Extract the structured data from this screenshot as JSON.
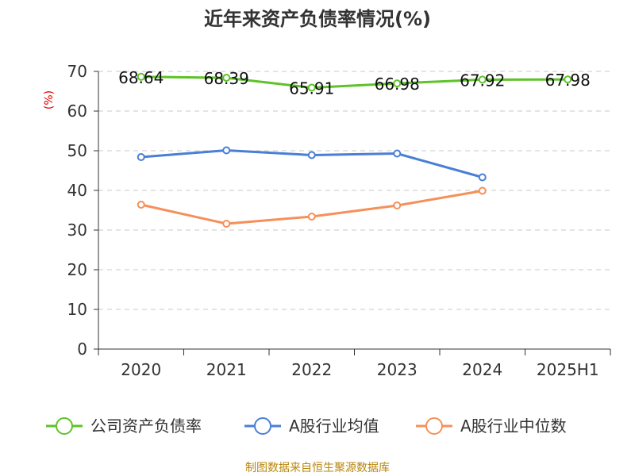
{
  "chart_data": {
    "type": "line",
    "title": "近年来资产负债率情况(%)",
    "ylabel": "(%)",
    "xlabel": "",
    "categories": [
      "2020",
      "2021",
      "2022",
      "2023",
      "2024",
      "2025H1"
    ],
    "ylim": [
      0,
      70
    ],
    "yticks": [
      0,
      10,
      20,
      30,
      40,
      50,
      60,
      70
    ],
    "grid": true,
    "legend_position": "bottom",
    "series": [
      {
        "name": "公司资产负债率",
        "color": "#5fc22a",
        "values": [
          68.64,
          68.39,
          65.91,
          66.98,
          67.92,
          67.98
        ],
        "labels": [
          "68.64",
          "68.39",
          "65.91",
          "66.98",
          "67.92",
          "67.98"
        ]
      },
      {
        "name": "A股行业均值",
        "color": "#4a7fd6",
        "values": [
          48.4,
          50.1,
          48.9,
          49.3,
          43.3,
          null
        ]
      },
      {
        "name": "A股行业中位数",
        "color": "#f5905a",
        "values": [
          36.4,
          31.6,
          33.4,
          36.2,
          39.9,
          null
        ]
      }
    ]
  },
  "footer": {
    "source": "制图数据来自恒生聚源数据库"
  }
}
